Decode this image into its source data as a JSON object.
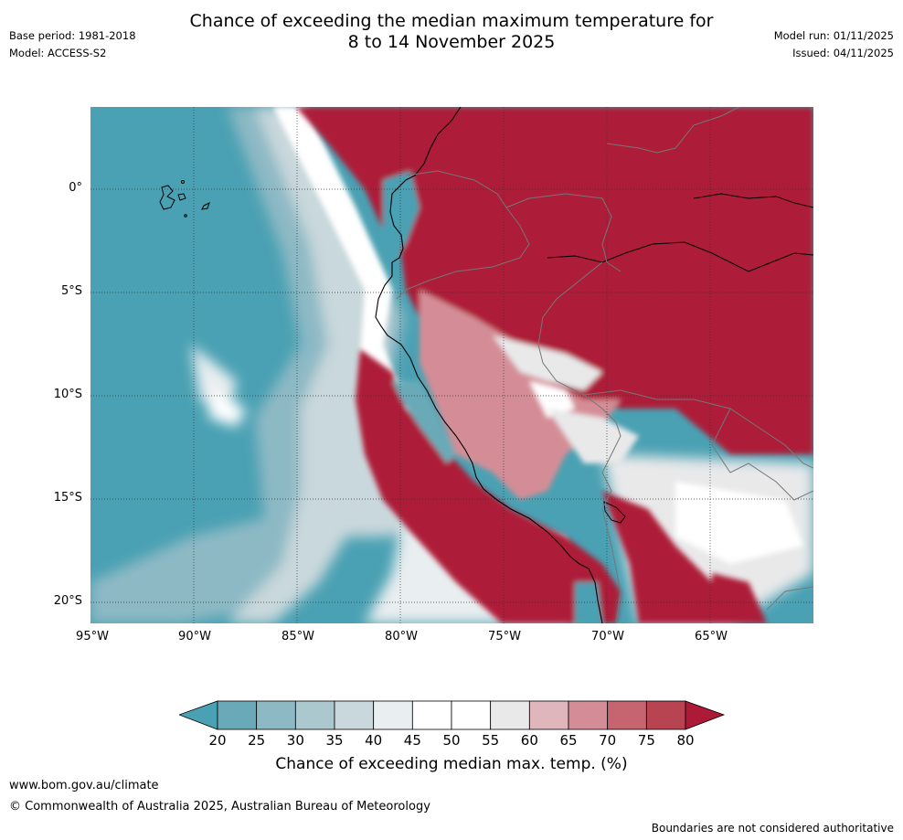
{
  "title": {
    "line1": "Chance of exceeding the median maximum temperature for",
    "line2": "8 to 14 November 2025"
  },
  "meta": {
    "base_period": "Base period: 1981-2018",
    "model": "Model: ACCESS-S2",
    "model_run": "Model run: 01/11/2025",
    "issued": "Issued: 04/11/2025"
  },
  "map": {
    "latitude_labels": [
      "0°",
      "5°S",
      "10°S",
      "15°S",
      "20°S"
    ],
    "longitude_labels": [
      "95°W",
      "90°W",
      "85°W",
      "80°W",
      "75°W",
      "70°W",
      "65°W"
    ]
  },
  "colorbar": {
    "ticks": [
      "20",
      "25",
      "30",
      "35",
      "40",
      "45",
      "50",
      "55",
      "60",
      "65",
      "70",
      "75",
      "80"
    ],
    "colors": [
      "#4aa1b3",
      "#6aaab8",
      "#8db9c5",
      "#aac8cd",
      "#c9d8dc",
      "#e9eef0",
      "#ffffff",
      "#ffffff",
      "#e9e9ea",
      "#deb6bc",
      "#d48d96",
      "#c66470",
      "#b84452",
      "#ad1a37"
    ],
    "label": "Chance of exceeding median max. temp. (%)"
  },
  "footer": {
    "url": "www.bom.gov.au/climate",
    "copyright": "© Commonwealth of Australia 2025, Australian Bureau of Meteorology",
    "disclaimer": "Boundaries are not considered authoritative"
  }
}
